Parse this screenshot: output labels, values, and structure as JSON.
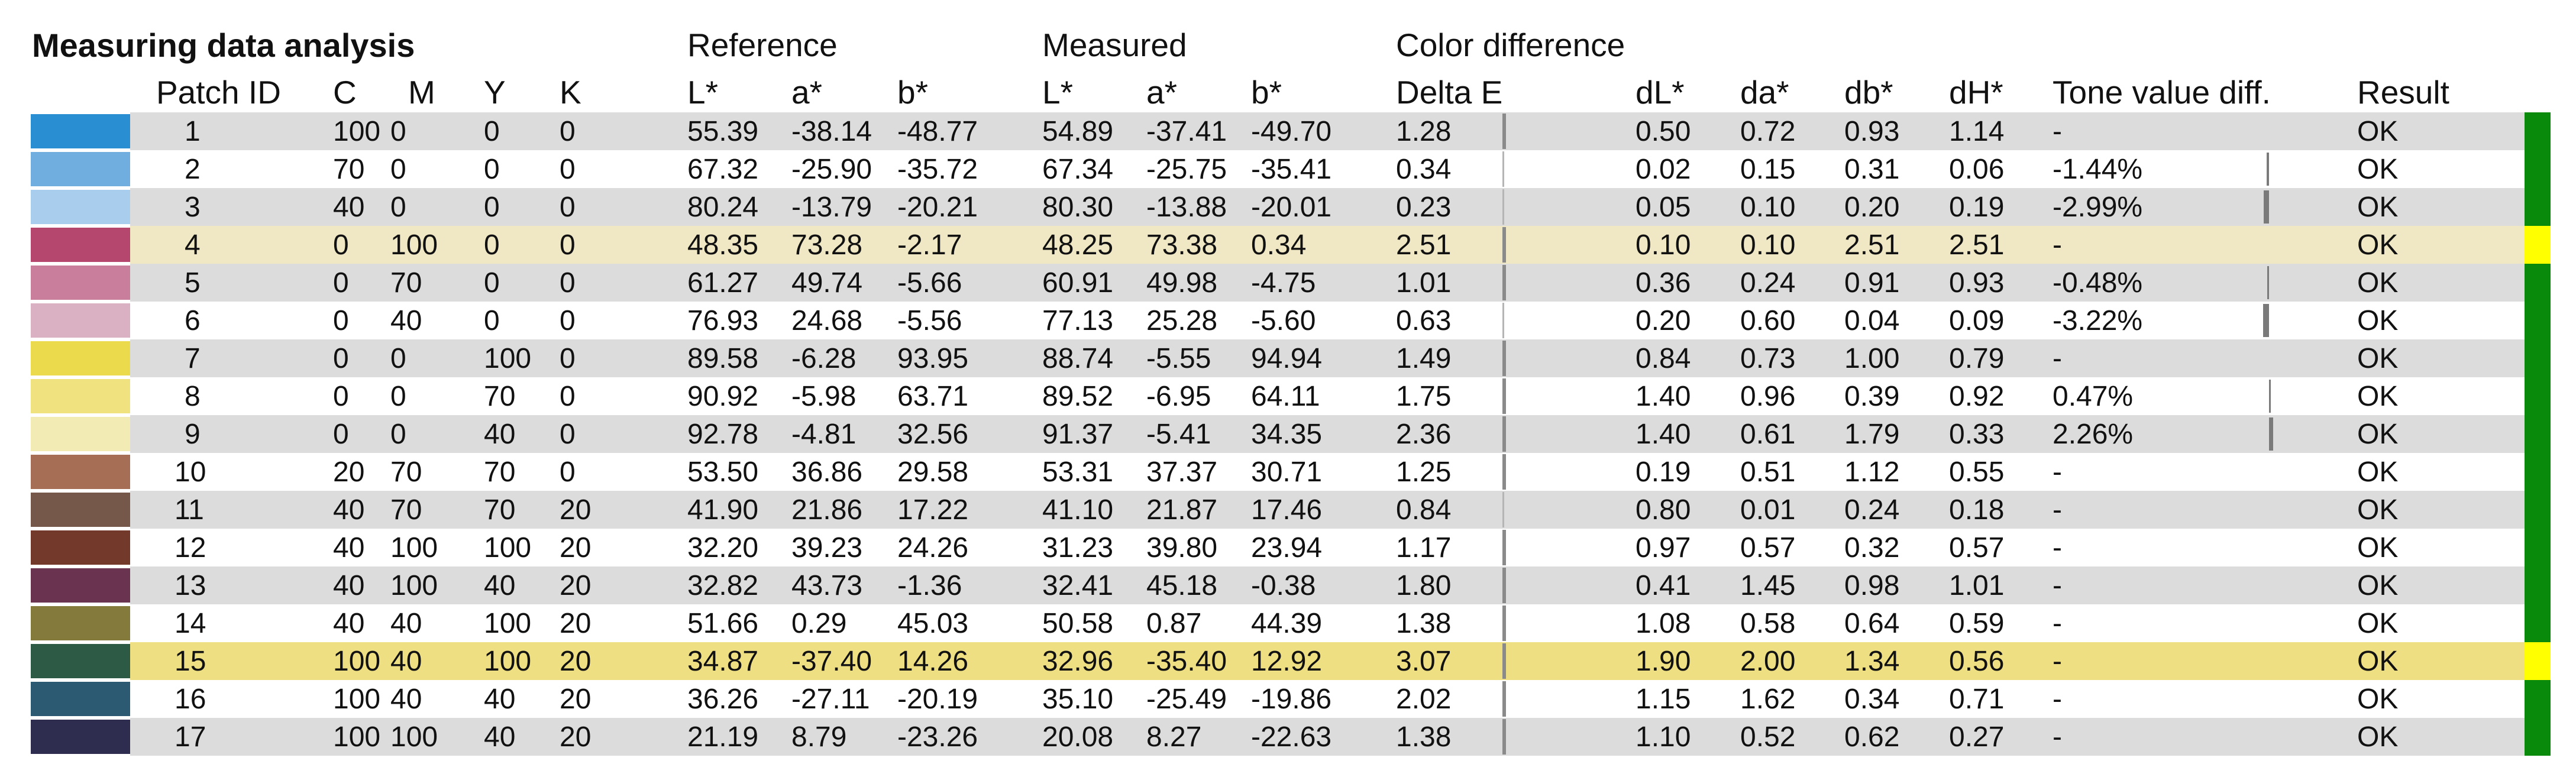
{
  "title": "Measuring data analysis",
  "groups": {
    "reference": "Reference",
    "measured": "Measured",
    "color_difference": "Color difference"
  },
  "columns": {
    "patch_id": "Patch ID",
    "c": "C",
    "m": "M",
    "y": "Y",
    "k": "K",
    "ref_l": "L*",
    "ref_a": "a*",
    "ref_b": "b*",
    "meas_l": "L*",
    "meas_a": "a*",
    "meas_b": "b*",
    "delta_e": "Delta E",
    "dl": "dL*",
    "da": "da*",
    "db": "db*",
    "dh": "dH*",
    "tone": "Tone value diff.",
    "result": "Result"
  },
  "colors": {
    "row_gray": "#dcdcdc",
    "row_white": "#ffffff",
    "row_highlight": "#f0e8c4",
    "row_highlight_strong": "#eedf82",
    "result_ok": "#0a8a0a",
    "result_warn": "#ffff00"
  },
  "rows": [
    {
      "id": "1",
      "c": "100",
      "m": "0",
      "y": "0",
      "k": "0",
      "ref_l": "55.39",
      "ref_a": "-38.14",
      "ref_b": "-48.77",
      "meas_l": "54.89",
      "meas_a": "-37.41",
      "meas_b": "-49.70",
      "delta_e": "1.28",
      "dl": "0.50",
      "da": "0.72",
      "db": "0.93",
      "dh": "1.14",
      "tone": "-",
      "tone_value": null,
      "result": "OK",
      "swatch": "#2a8fd2",
      "highlight": "none",
      "warn": false
    },
    {
      "id": "2",
      "c": "70",
      "m": "0",
      "y": "0",
      "k": "0",
      "ref_l": "67.32",
      "ref_a": "-25.90",
      "ref_b": "-35.72",
      "meas_l": "67.34",
      "meas_a": "-25.75",
      "meas_b": "-35.41",
      "delta_e": "0.34",
      "dl": "0.02",
      "da": "0.15",
      "db": "0.31",
      "dh": "0.06",
      "tone": "-1.44%",
      "tone_value": -1.44,
      "result": "OK",
      "swatch": "#6faedf",
      "highlight": "none",
      "warn": false
    },
    {
      "id": "3",
      "c": "40",
      "m": "0",
      "y": "0",
      "k": "0",
      "ref_l": "80.24",
      "ref_a": "-13.79",
      "ref_b": "-20.21",
      "meas_l": "80.30",
      "meas_a": "-13.88",
      "meas_b": "-20.01",
      "delta_e": "0.23",
      "dl": "0.05",
      "da": "0.10",
      "db": "0.20",
      "dh": "0.19",
      "tone": "-2.99%",
      "tone_value": -2.99,
      "result": "OK",
      "swatch": "#a9cdec",
      "highlight": "none",
      "warn": false
    },
    {
      "id": "4",
      "c": "0",
      "m": "100",
      "y": "0",
      "k": "0",
      "ref_l": "48.35",
      "ref_a": "73.28",
      "ref_b": "-2.17",
      "meas_l": "48.25",
      "meas_a": "73.38",
      "meas_b": "0.34",
      "delta_e": "2.51",
      "dl": "0.10",
      "da": "0.10",
      "db": "2.51",
      "dh": "2.51",
      "tone": "-",
      "tone_value": null,
      "result": "OK",
      "swatch": "#b5476f",
      "highlight": "light",
      "warn": true
    },
    {
      "id": "5",
      "c": "0",
      "m": "70",
      "y": "0",
      "k": "0",
      "ref_l": "61.27",
      "ref_a": "49.74",
      "ref_b": "-5.66",
      "meas_l": "60.91",
      "meas_a": "49.98",
      "meas_b": "-4.75",
      "delta_e": "1.01",
      "dl": "0.36",
      "da": "0.24",
      "db": "0.91",
      "dh": "0.93",
      "tone": "-0.48%",
      "tone_value": -0.48,
      "result": "OK",
      "swatch": "#c97e9c",
      "highlight": "none",
      "warn": false
    },
    {
      "id": "6",
      "c": "0",
      "m": "40",
      "y": "0",
      "k": "0",
      "ref_l": "76.93",
      "ref_a": "24.68",
      "ref_b": "-5.56",
      "meas_l": "77.13",
      "meas_a": "25.28",
      "meas_b": "-5.60",
      "delta_e": "0.63",
      "dl": "0.20",
      "da": "0.60",
      "db": "0.04",
      "dh": "0.09",
      "tone": "-3.22%",
      "tone_value": -3.22,
      "result": "OK",
      "swatch": "#d9b1c3",
      "highlight": "none",
      "warn": false
    },
    {
      "id": "7",
      "c": "0",
      "m": "0",
      "y": "100",
      "k": "0",
      "ref_l": "89.58",
      "ref_a": "-6.28",
      "ref_b": "93.95",
      "meas_l": "88.74",
      "meas_a": "-5.55",
      "meas_b": "94.94",
      "delta_e": "1.49",
      "dl": "0.84",
      "da": "0.73",
      "db": "1.00",
      "dh": "0.79",
      "tone": "-",
      "tone_value": null,
      "result": "OK",
      "swatch": "#ebdb4c",
      "highlight": "none",
      "warn": false
    },
    {
      "id": "8",
      "c": "0",
      "m": "0",
      "y": "70",
      "k": "0",
      "ref_l": "90.92",
      "ref_a": "-5.98",
      "ref_b": "63.71",
      "meas_l": "89.52",
      "meas_a": "-6.95",
      "meas_b": "64.11",
      "delta_e": "1.75",
      "dl": "1.40",
      "da": "0.96",
      "db": "0.39",
      "dh": "0.92",
      "tone": "0.47%",
      "tone_value": 0.47,
      "result": "OK",
      "swatch": "#efe27f",
      "highlight": "none",
      "warn": false
    },
    {
      "id": "9",
      "c": "0",
      "m": "0",
      "y": "40",
      "k": "0",
      "ref_l": "92.78",
      "ref_a": "-4.81",
      "ref_b": "32.56",
      "meas_l": "91.37",
      "meas_a": "-5.41",
      "meas_b": "34.35",
      "delta_e": "2.36",
      "dl": "1.40",
      "da": "0.61",
      "db": "1.79",
      "dh": "0.33",
      "tone": "2.26%",
      "tone_value": 2.26,
      "result": "OK",
      "swatch": "#f2ebb3",
      "highlight": "none",
      "warn": false
    },
    {
      "id": "10",
      "c": "20",
      "m": "70",
      "y": "70",
      "k": "0",
      "ref_l": "53.50",
      "ref_a": "36.86",
      "ref_b": "29.58",
      "meas_l": "53.31",
      "meas_a": "37.37",
      "meas_b": "30.71",
      "delta_e": "1.25",
      "dl": "0.19",
      "da": "0.51",
      "db": "1.12",
      "dh": "0.55",
      "tone": "-",
      "tone_value": null,
      "result": "OK",
      "swatch": "#a56e55",
      "highlight": "none",
      "warn": false
    },
    {
      "id": "11",
      "c": "40",
      "m": "70",
      "y": "70",
      "k": "20",
      "ref_l": "41.90",
      "ref_a": "21.86",
      "ref_b": "17.22",
      "meas_l": "41.10",
      "meas_a": "21.87",
      "meas_b": "17.46",
      "delta_e": "0.84",
      "dl": "0.80",
      "da": "0.01",
      "db": "0.24",
      "dh": "0.18",
      "tone": "-",
      "tone_value": null,
      "result": "OK",
      "swatch": "#755849",
      "highlight": "none",
      "warn": false
    },
    {
      "id": "12",
      "c": "40",
      "m": "100",
      "y": "100",
      "k": "20",
      "ref_l": "32.20",
      "ref_a": "39.23",
      "ref_b": "24.26",
      "meas_l": "31.23",
      "meas_a": "39.80",
      "meas_b": "23.94",
      "delta_e": "1.17",
      "dl": "0.97",
      "da": "0.57",
      "db": "0.32",
      "dh": "0.57",
      "tone": "-",
      "tone_value": null,
      "result": "OK",
      "swatch": "#73392a",
      "highlight": "none",
      "warn": false
    },
    {
      "id": "13",
      "c": "40",
      "m": "100",
      "y": "40",
      "k": "20",
      "ref_l": "32.82",
      "ref_a": "43.73",
      "ref_b": "-1.36",
      "meas_l": "32.41",
      "meas_a": "45.18",
      "meas_b": "-0.38",
      "delta_e": "1.80",
      "dl": "0.41",
      "da": "1.45",
      "db": "0.98",
      "dh": "1.01",
      "tone": "-",
      "tone_value": null,
      "result": "OK",
      "swatch": "#6a3350",
      "highlight": "none",
      "warn": false
    },
    {
      "id": "14",
      "c": "40",
      "m": "40",
      "y": "100",
      "k": "20",
      "ref_l": "51.66",
      "ref_a": "0.29",
      "ref_b": "45.03",
      "meas_l": "50.58",
      "meas_a": "0.87",
      "meas_b": "44.39",
      "delta_e": "1.38",
      "dl": "1.08",
      "da": "0.58",
      "db": "0.64",
      "dh": "0.59",
      "tone": "-",
      "tone_value": null,
      "result": "OK",
      "swatch": "#847a3c",
      "highlight": "none",
      "warn": false
    },
    {
      "id": "15",
      "c": "100",
      "m": "40",
      "y": "100",
      "k": "20",
      "ref_l": "34.87",
      "ref_a": "-37.40",
      "ref_b": "14.26",
      "meas_l": "32.96",
      "meas_a": "-35.40",
      "meas_b": "12.92",
      "delta_e": "3.07",
      "dl": "1.90",
      "da": "2.00",
      "db": "1.34",
      "dh": "0.56",
      "tone": "-",
      "tone_value": null,
      "result": "OK",
      "swatch": "#2d5a45",
      "highlight": "strong",
      "warn": true
    },
    {
      "id": "16",
      "c": "100",
      "m": "40",
      "y": "40",
      "k": "20",
      "ref_l": "36.26",
      "ref_a": "-27.11",
      "ref_b": "-20.19",
      "meas_l": "35.10",
      "meas_a": "-25.49",
      "meas_b": "-19.86",
      "delta_e": "2.02",
      "dl": "1.15",
      "da": "1.62",
      "db": "0.34",
      "dh": "0.71",
      "tone": "-",
      "tone_value": null,
      "result": "OK",
      "swatch": "#2b5a72",
      "highlight": "none",
      "warn": false
    },
    {
      "id": "17",
      "c": "100",
      "m": "100",
      "y": "40",
      "k": "20",
      "ref_l": "21.19",
      "ref_a": "8.79",
      "ref_b": "-23.26",
      "meas_l": "20.08",
      "meas_a": "8.27",
      "meas_b": "-22.63",
      "delta_e": "1.38",
      "dl": "1.10",
      "da": "0.52",
      "db": "0.62",
      "dh": "0.27",
      "tone": "-",
      "tone_value": null,
      "result": "OK",
      "swatch": "#2f2d4f",
      "highlight": "none",
      "warn": false
    }
  ]
}
